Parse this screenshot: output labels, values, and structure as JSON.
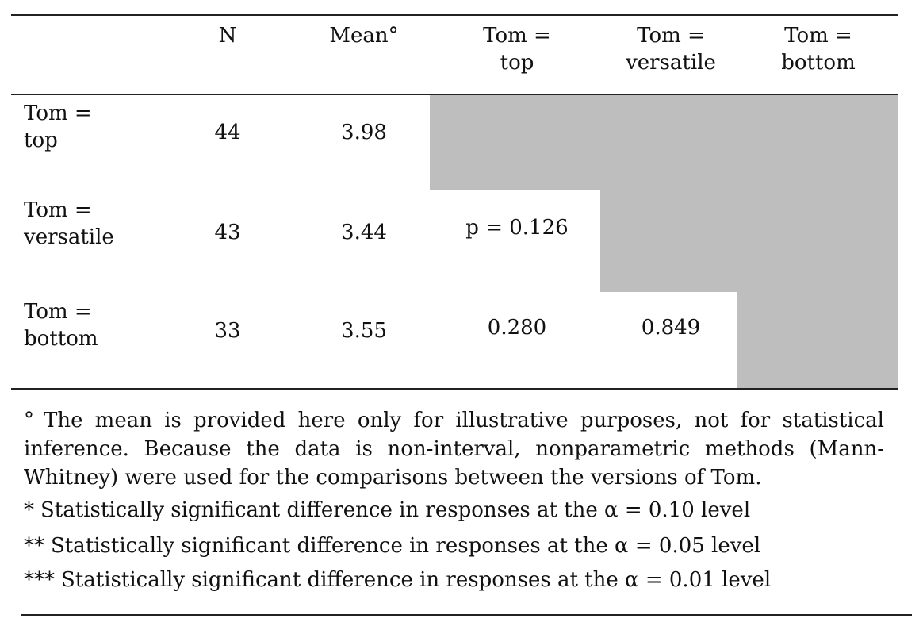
{
  "table": {
    "columns": {
      "n": "N",
      "mean": "Mean°",
      "top": [
        "Tom =",
        "top"
      ],
      "versatile": [
        "Tom =",
        "versatile"
      ],
      "bottom": [
        "Tom =",
        "bottom"
      ]
    },
    "rows": [
      {
        "label": [
          "Tom =",
          "top"
        ],
        "n": "44",
        "mean": "3.98"
      },
      {
        "label": [
          "Tom =",
          "versatile"
        ],
        "n": "43",
        "mean": "3.44",
        "vs_top": "p = 0.126"
      },
      {
        "label": [
          "Tom =",
          "bottom"
        ],
        "n": "33",
        "mean": "3.55",
        "vs_top": "0.280",
        "vs_versatile": "0.849"
      }
    ]
  },
  "notes": {
    "degree": {
      "mark": "°",
      "text": "The mean is provided here only for illustrative purposes, not for statistical inference. Because the data is non-interval, nonparametric methods (Mann-Whitney) were used for the comparisons between the versions of Tom."
    },
    "sig1": {
      "mark": "*",
      "text": "Statistically significant difference in responses at the α = 0.10 level"
    },
    "sig2": {
      "mark": "**",
      "text": "Statistically significant difference in responses at the α = 0.05 level"
    },
    "sig3": {
      "mark": "***",
      "text": "Statistically significant difference in responses at the α = 0.01 level"
    }
  }
}
